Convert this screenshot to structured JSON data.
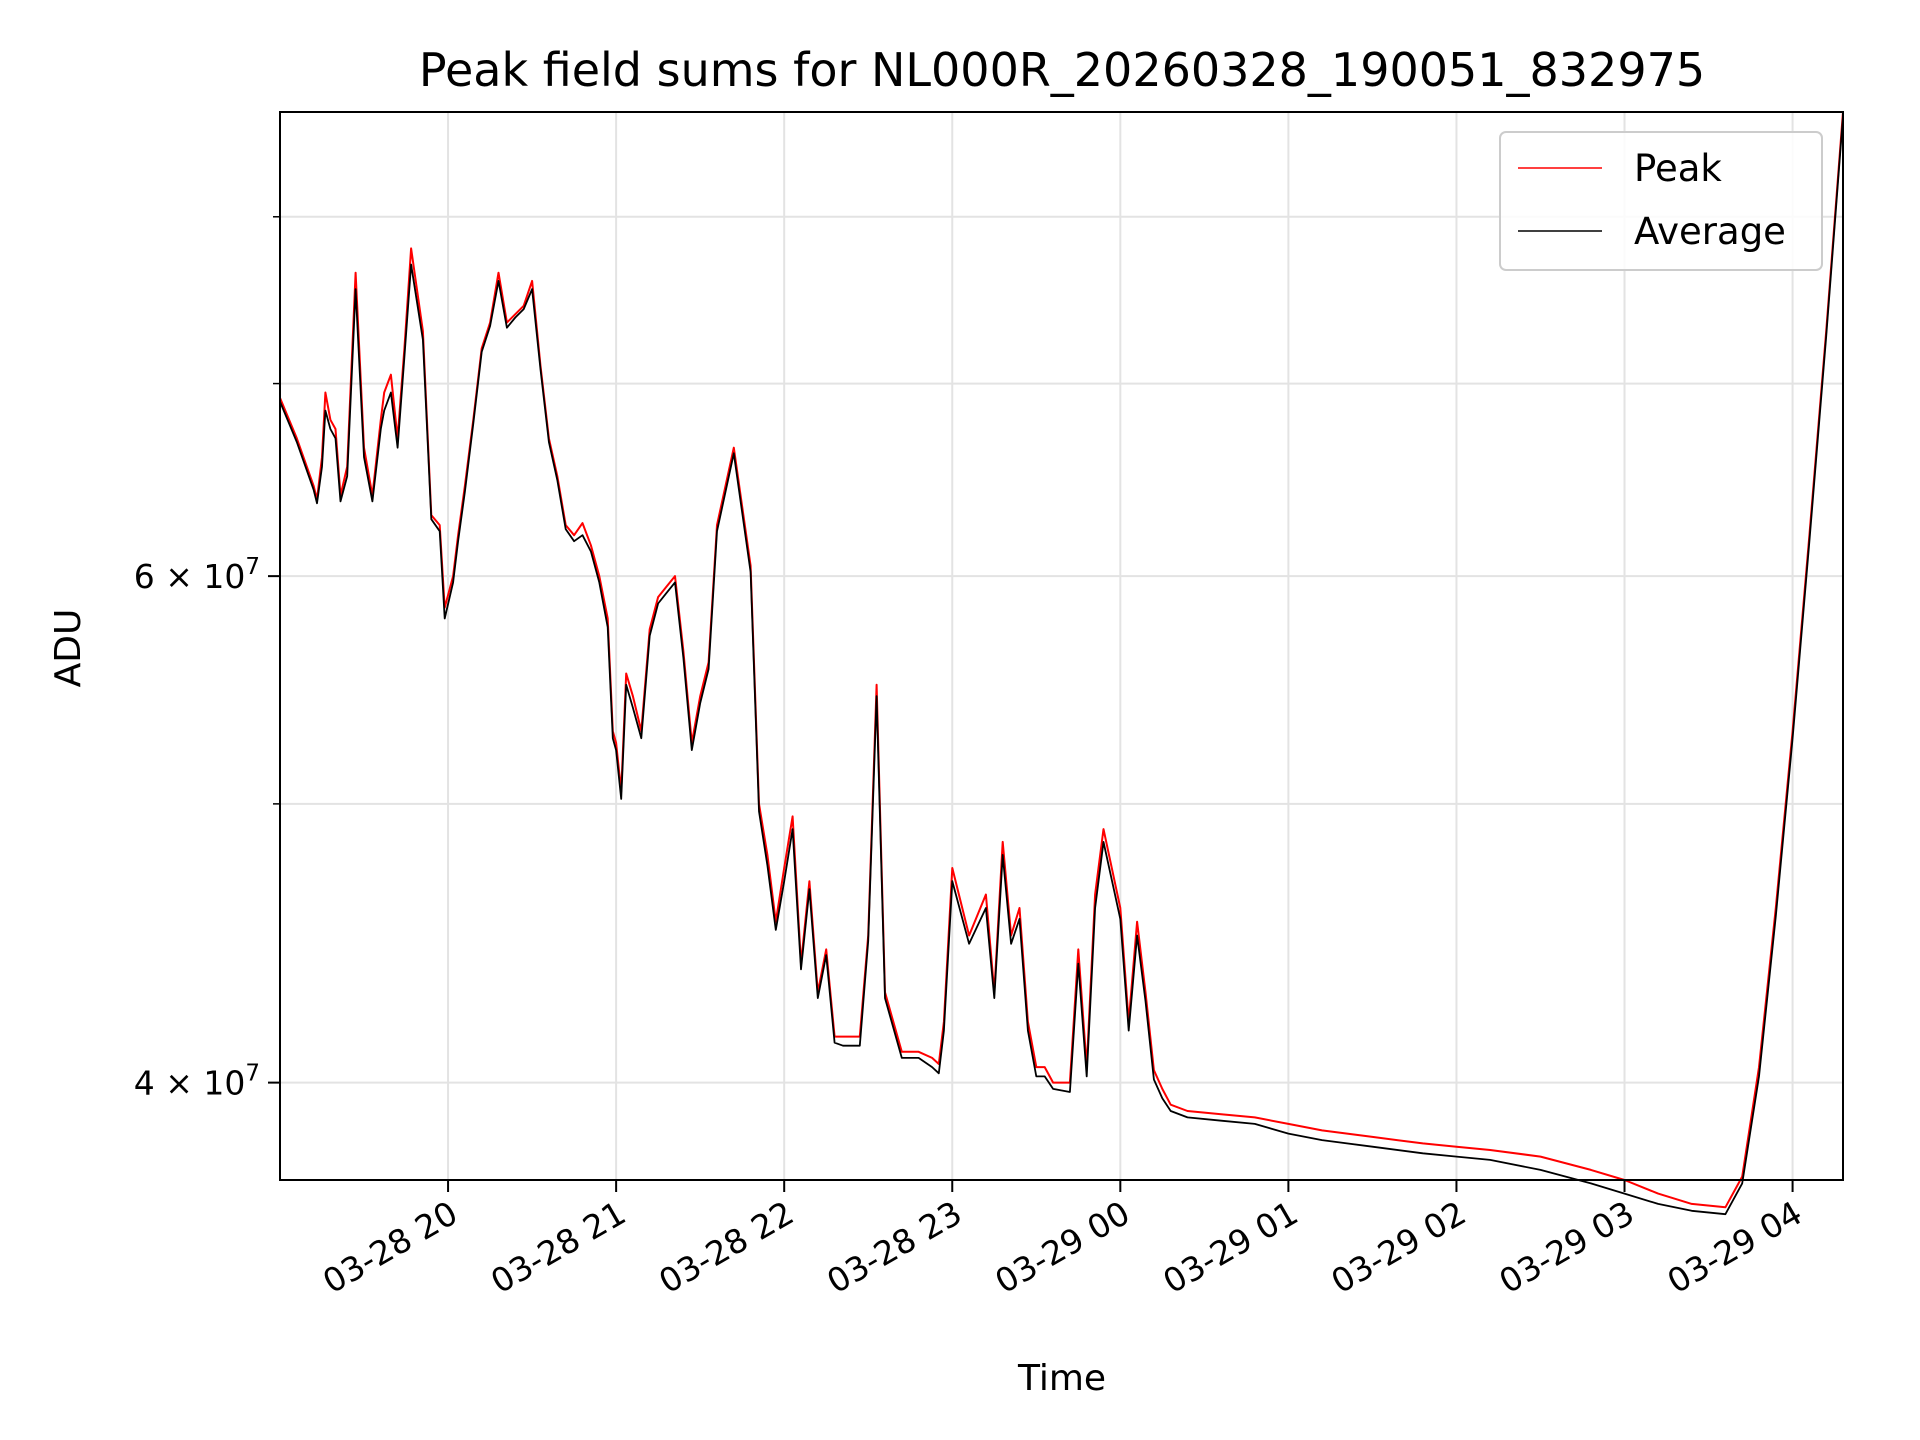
{
  "chart_data": {
    "type": "line",
    "title": "Peak field sums for NL000R_20260328_190051_832975",
    "xlabel": "Time",
    "ylabel": "ADU",
    "x_unit": "hours since 03-28 19:00",
    "xlim": [
      0.0,
      9.3
    ],
    "ylim": [
      37000000,
      87000000
    ],
    "y_scale": "log",
    "grid": true,
    "legend_position": "top-right",
    "x_ticks": [
      {
        "value": 1,
        "label": "03-28 20"
      },
      {
        "value": 2,
        "label": "03-28 21"
      },
      {
        "value": 3,
        "label": "03-28 22"
      },
      {
        "value": 4,
        "label": "03-28 23"
      },
      {
        "value": 5,
        "label": "03-29 00"
      },
      {
        "value": 6,
        "label": "03-29 01"
      },
      {
        "value": 7,
        "label": "03-29 02"
      },
      {
        "value": 8,
        "label": "03-29 03"
      },
      {
        "value": 9,
        "label": "03-29 04"
      }
    ],
    "y_major_ticks": [
      {
        "value": 40000000,
        "base": "4",
        "exp": "7"
      },
      {
        "value": 60000000,
        "base": "6",
        "exp": "7"
      }
    ],
    "y_minor_ticks": [
      50000000,
      70000000,
      80000000
    ],
    "series": [
      {
        "name": "Peak",
        "color": "#ff0000",
        "x": [
          0.0,
          0.1,
          0.2,
          0.22,
          0.25,
          0.27,
          0.3,
          0.33,
          0.36,
          0.4,
          0.45,
          0.5,
          0.55,
          0.6,
          0.62,
          0.66,
          0.7,
          0.74,
          0.78,
          0.85,
          0.9,
          0.95,
          0.98,
          1.03,
          1.06,
          1.1,
          1.15,
          1.2,
          1.25,
          1.3,
          1.35,
          1.4,
          1.45,
          1.5,
          1.55,
          1.6,
          1.65,
          1.7,
          1.75,
          1.8,
          1.85,
          1.9,
          1.95,
          1.98,
          2.0,
          2.03,
          2.06,
          2.1,
          2.15,
          2.2,
          2.25,
          2.3,
          2.35,
          2.4,
          2.45,
          2.5,
          2.55,
          2.6,
          2.7,
          2.8,
          2.85,
          2.9,
          2.95,
          3.0,
          3.05,
          3.1,
          3.15,
          3.2,
          3.25,
          3.3,
          3.35,
          3.4,
          3.45,
          3.5,
          3.55,
          3.6,
          3.7,
          3.8,
          3.88,
          3.92,
          3.95,
          4.0,
          4.1,
          4.2,
          4.25,
          4.3,
          4.35,
          4.4,
          4.45,
          4.5,
          4.55,
          4.6,
          4.7,
          4.75,
          4.8,
          4.85,
          4.9,
          5.0,
          5.05,
          5.1,
          5.15,
          5.2,
          5.25,
          5.3,
          5.4,
          5.6,
          5.8,
          6.0,
          6.2,
          6.5,
          6.8,
          7.0,
          7.2,
          7.5,
          7.8,
          8.0,
          8.2,
          8.4,
          8.6,
          8.7,
          8.8,
          8.9,
          9.0,
          9.1,
          9.2,
          9.3
        ],
        "values": [
          69200000,
          67000000,
          64500000,
          63800000,
          66000000,
          69500000,
          68000000,
          67500000,
          64000000,
          65500000,
          76500000,
          66500000,
          64000000,
          68000000,
          69500000,
          70500000,
          67000000,
          72000000,
          78000000,
          73000000,
          63000000,
          62500000,
          58500000,
          60000000,
          62000000,
          64500000,
          68000000,
          72000000,
          73500000,
          76500000,
          73500000,
          74000000,
          74500000,
          76000000,
          71000000,
          67000000,
          65000000,
          62500000,
          62000000,
          62600000,
          61500000,
          60000000,
          58000000,
          53000000,
          52500000,
          50500000,
          55500000,
          54500000,
          53000000,
          57500000,
          59000000,
          59500000,
          60000000,
          56500000,
          52500000,
          54500000,
          56000000,
          62500000,
          66500000,
          60500000,
          50000000,
          48000000,
          45500000,
          47500000,
          49500000,
          44000000,
          47000000,
          43000000,
          44500000,
          41500000,
          41500000,
          41500000,
          41500000,
          45000000,
          55000000,
          43000000,
          41000000,
          41000000,
          40800000,
          40600000,
          42000000,
          47500000,
          45000000,
          46500000,
          43000000,
          48500000,
          45000000,
          46000000,
          42000000,
          40500000,
          40500000,
          40000000,
          40000000,
          44500000,
          40500000,
          46500000,
          49000000,
          46000000,
          42000000,
          45500000,
          43000000,
          40400000,
          39800000,
          39300000,
          39100000,
          39000000,
          38900000,
          38700000,
          38500000,
          38300000,
          38100000,
          38000000,
          37900000,
          37700000,
          37300000,
          37000000,
          36600000,
          36300000,
          36200000,
          37100000,
          40500000,
          46000000,
          53000000,
          62000000,
          73000000,
          87000000
        ]
      },
      {
        "name": "Average",
        "color": "#000000",
        "x": [
          0.0,
          0.1,
          0.2,
          0.22,
          0.25,
          0.27,
          0.3,
          0.33,
          0.36,
          0.4,
          0.45,
          0.5,
          0.55,
          0.6,
          0.62,
          0.66,
          0.7,
          0.74,
          0.78,
          0.85,
          0.9,
          0.95,
          0.98,
          1.03,
          1.06,
          1.1,
          1.15,
          1.2,
          1.25,
          1.3,
          1.35,
          1.4,
          1.45,
          1.5,
          1.55,
          1.6,
          1.65,
          1.7,
          1.75,
          1.8,
          1.85,
          1.9,
          1.95,
          1.98,
          2.0,
          2.03,
          2.06,
          2.1,
          2.15,
          2.2,
          2.25,
          2.3,
          2.35,
          2.4,
          2.45,
          2.5,
          2.55,
          2.6,
          2.7,
          2.8,
          2.85,
          2.9,
          2.95,
          3.0,
          3.05,
          3.1,
          3.15,
          3.2,
          3.25,
          3.3,
          3.35,
          3.4,
          3.45,
          3.5,
          3.55,
          3.6,
          3.7,
          3.8,
          3.88,
          3.92,
          3.95,
          4.0,
          4.1,
          4.2,
          4.25,
          4.3,
          4.35,
          4.4,
          4.45,
          4.5,
          4.55,
          4.6,
          4.7,
          4.75,
          4.8,
          4.85,
          4.9,
          5.0,
          5.05,
          5.1,
          5.15,
          5.2,
          5.25,
          5.3,
          5.4,
          5.6,
          5.8,
          6.0,
          6.2,
          6.5,
          6.8,
          7.0,
          7.2,
          7.5,
          7.8,
          8.0,
          8.2,
          8.4,
          8.6,
          8.7,
          8.8,
          8.9,
          9.0,
          9.1,
          9.2,
          9.3
        ],
        "values": [
          69000000,
          66800000,
          64300000,
          63600000,
          65500000,
          68500000,
          67500000,
          67000000,
          63700000,
          65000000,
          75500000,
          66000000,
          63700000,
          67500000,
          68500000,
          69500000,
          66500000,
          71500000,
          77000000,
          72500000,
          62800000,
          62200000,
          58000000,
          59700000,
          61700000,
          64200000,
          67800000,
          71800000,
          73300000,
          76000000,
          73200000,
          73800000,
          74300000,
          75500000,
          70800000,
          66800000,
          64800000,
          62300000,
          61700000,
          62000000,
          61200000,
          59700000,
          57600000,
          52700000,
          52200000,
          50200000,
          55000000,
          54000000,
          52700000,
          57200000,
          58700000,
          59200000,
          59700000,
          56200000,
          52200000,
          54200000,
          55700000,
          62200000,
          66200000,
          60200000,
          49700000,
          47600000,
          45200000,
          47000000,
          49000000,
          43800000,
          46700000,
          42800000,
          44300000,
          41300000,
          41200000,
          41200000,
          41200000,
          44800000,
          54500000,
          42800000,
          40800000,
          40800000,
          40500000,
          40300000,
          41700000,
          47000000,
          44700000,
          46000000,
          42800000,
          48000000,
          44700000,
          45600000,
          41700000,
          40200000,
          40200000,
          39800000,
          39700000,
          44000000,
          40200000,
          46000000,
          48500000,
          45600000,
          41700000,
          45000000,
          42700000,
          40100000,
          39500000,
          39100000,
          38900000,
          38800000,
          38700000,
          38400000,
          38200000,
          38000000,
          37800000,
          37700000,
          37600000,
          37300000,
          36900000,
          36600000,
          36300000,
          36100000,
          36000000,
          36900000,
          40200000,
          45700000,
          52700000,
          61700000,
          72700000,
          86700000
        ]
      }
    ]
  }
}
